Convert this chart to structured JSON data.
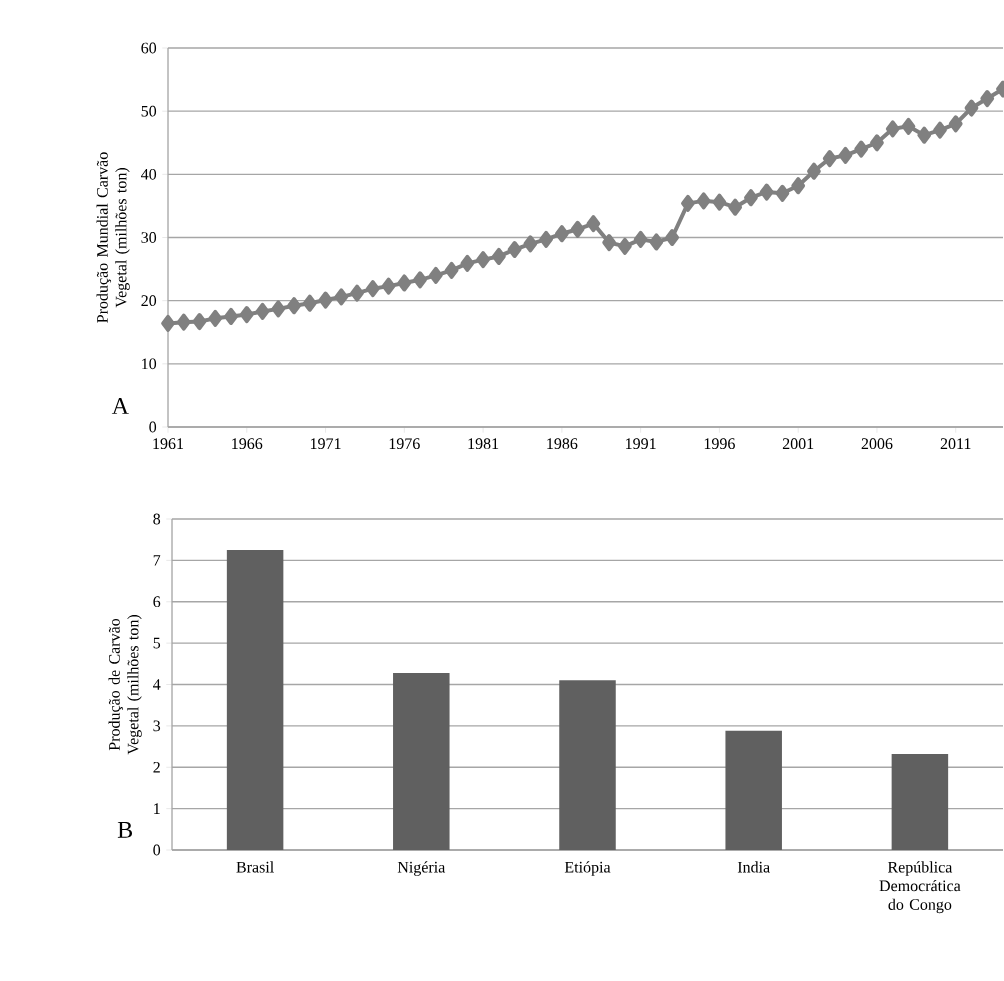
{
  "chart_data": [
    {
      "type": "line",
      "ylabel": "Produção Mundial Carvão Vegetal (milhões ton)",
      "x": [
        1961,
        1962,
        1963,
        1964,
        1965,
        1966,
        1967,
        1968,
        1969,
        1970,
        1971,
        1972,
        1973,
        1974,
        1975,
        1976,
        1977,
        1978,
        1979,
        1980,
        1981,
        1982,
        1983,
        1984,
        1985,
        1986,
        1987,
        1988,
        1989,
        1990,
        1991,
        1992,
        1993,
        1994,
        1995,
        1996,
        1997,
        1998,
        1999,
        2000,
        2001,
        2002,
        2003,
        2004,
        2005,
        2006,
        2007,
        2008,
        2009,
        2010,
        2011,
        2012,
        2013,
        2014
      ],
      "values": [
        16.4,
        16.6,
        16.7,
        17.2,
        17.5,
        17.8,
        18.3,
        18.7,
        19.2,
        19.6,
        20.1,
        20.6,
        21.2,
        21.9,
        22.3,
        22.8,
        23.3,
        24.0,
        24.8,
        25.9,
        26.5,
        27.0,
        28.1,
        29.0,
        29.7,
        30.6,
        31.3,
        32.2,
        29.2,
        28.6,
        29.7,
        29.3,
        30.0,
        35.4,
        35.8,
        35.6,
        34.8,
        36.3,
        37.2,
        37.0,
        38.2,
        40.5,
        42.5,
        43.0,
        44.0,
        45.0,
        47.2,
        47.6,
        46.2,
        47.0,
        48.0,
        50.5,
        52.0,
        53.5
      ],
      "color": "#808080",
      "marker": "diamond",
      "line_style": "solid",
      "xlim": [
        1961,
        2014
      ],
      "xticks": [
        1961,
        1966,
        1971,
        1976,
        1981,
        1986,
        1991,
        1996,
        2001,
        2006,
        2011
      ],
      "ylim": [
        0,
        60
      ],
      "yticks": [
        0,
        10,
        20,
        30,
        40,
        50,
        60
      ],
      "grid": "y",
      "annotations": [
        "A"
      ]
    },
    {
      "type": "bar",
      "ylabel": "Produção de Carvão Vegetal (milhões ton)",
      "categories": [
        "Brasil",
        "Nigéria",
        "Etiópia",
        "India",
        "República Democrática do Congo"
      ],
      "values": [
        7.25,
        4.28,
        4.1,
        2.88,
        2.32
      ],
      "color": "#606060",
      "ylim": [
        0,
        8
      ],
      "yticks": [
        0,
        1,
        2,
        3,
        4,
        5,
        6,
        7,
        8
      ],
      "grid": "y",
      "annotations": [
        "B"
      ]
    }
  ]
}
